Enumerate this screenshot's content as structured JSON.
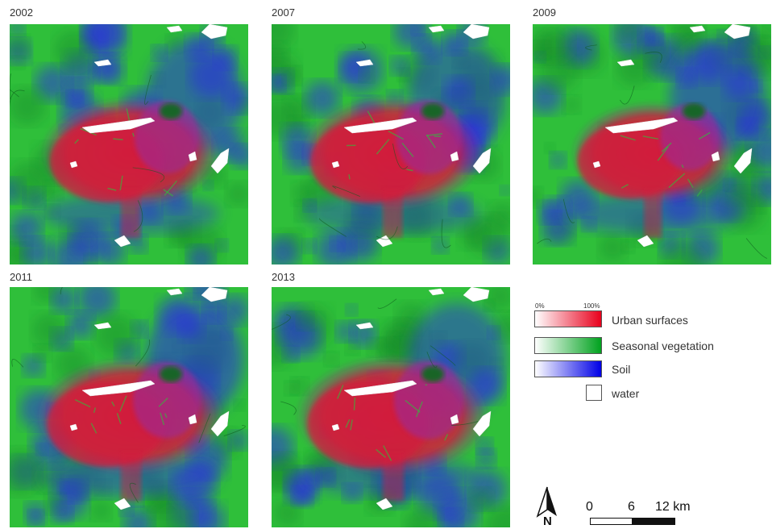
{
  "panels": [
    {
      "year": "2002",
      "urban": 1.0,
      "soil": 0.95
    },
    {
      "year": "2007",
      "urban": 1.02,
      "soil": 0.85
    },
    {
      "year": "2009",
      "urban": 0.92,
      "soil": 1.0
    },
    {
      "year": "2011",
      "urban": 1.05,
      "soil": 1.05
    },
    {
      "year": "2013",
      "urban": 1.08,
      "soil": 0.9
    }
  ],
  "legend": {
    "scale_min": "0%",
    "scale_max": "100%",
    "items": [
      {
        "label": "Urban surfaces",
        "color": "#e8001c"
      },
      {
        "label": "Seasonal vegetation",
        "color": "#00a21e"
      },
      {
        "label": "Soil",
        "color": "#0000e6"
      }
    ],
    "water_label": "water"
  },
  "north": {
    "letter": "N"
  },
  "scale": {
    "ticks": [
      "0",
      "6",
      "12 km"
    ]
  },
  "colors": {
    "vegetation": "#2fbf3a",
    "vegetation_dark": "#138a2a",
    "urban": "#d21c3c",
    "soil": "#2a2ee0",
    "water": "#ffffff"
  }
}
